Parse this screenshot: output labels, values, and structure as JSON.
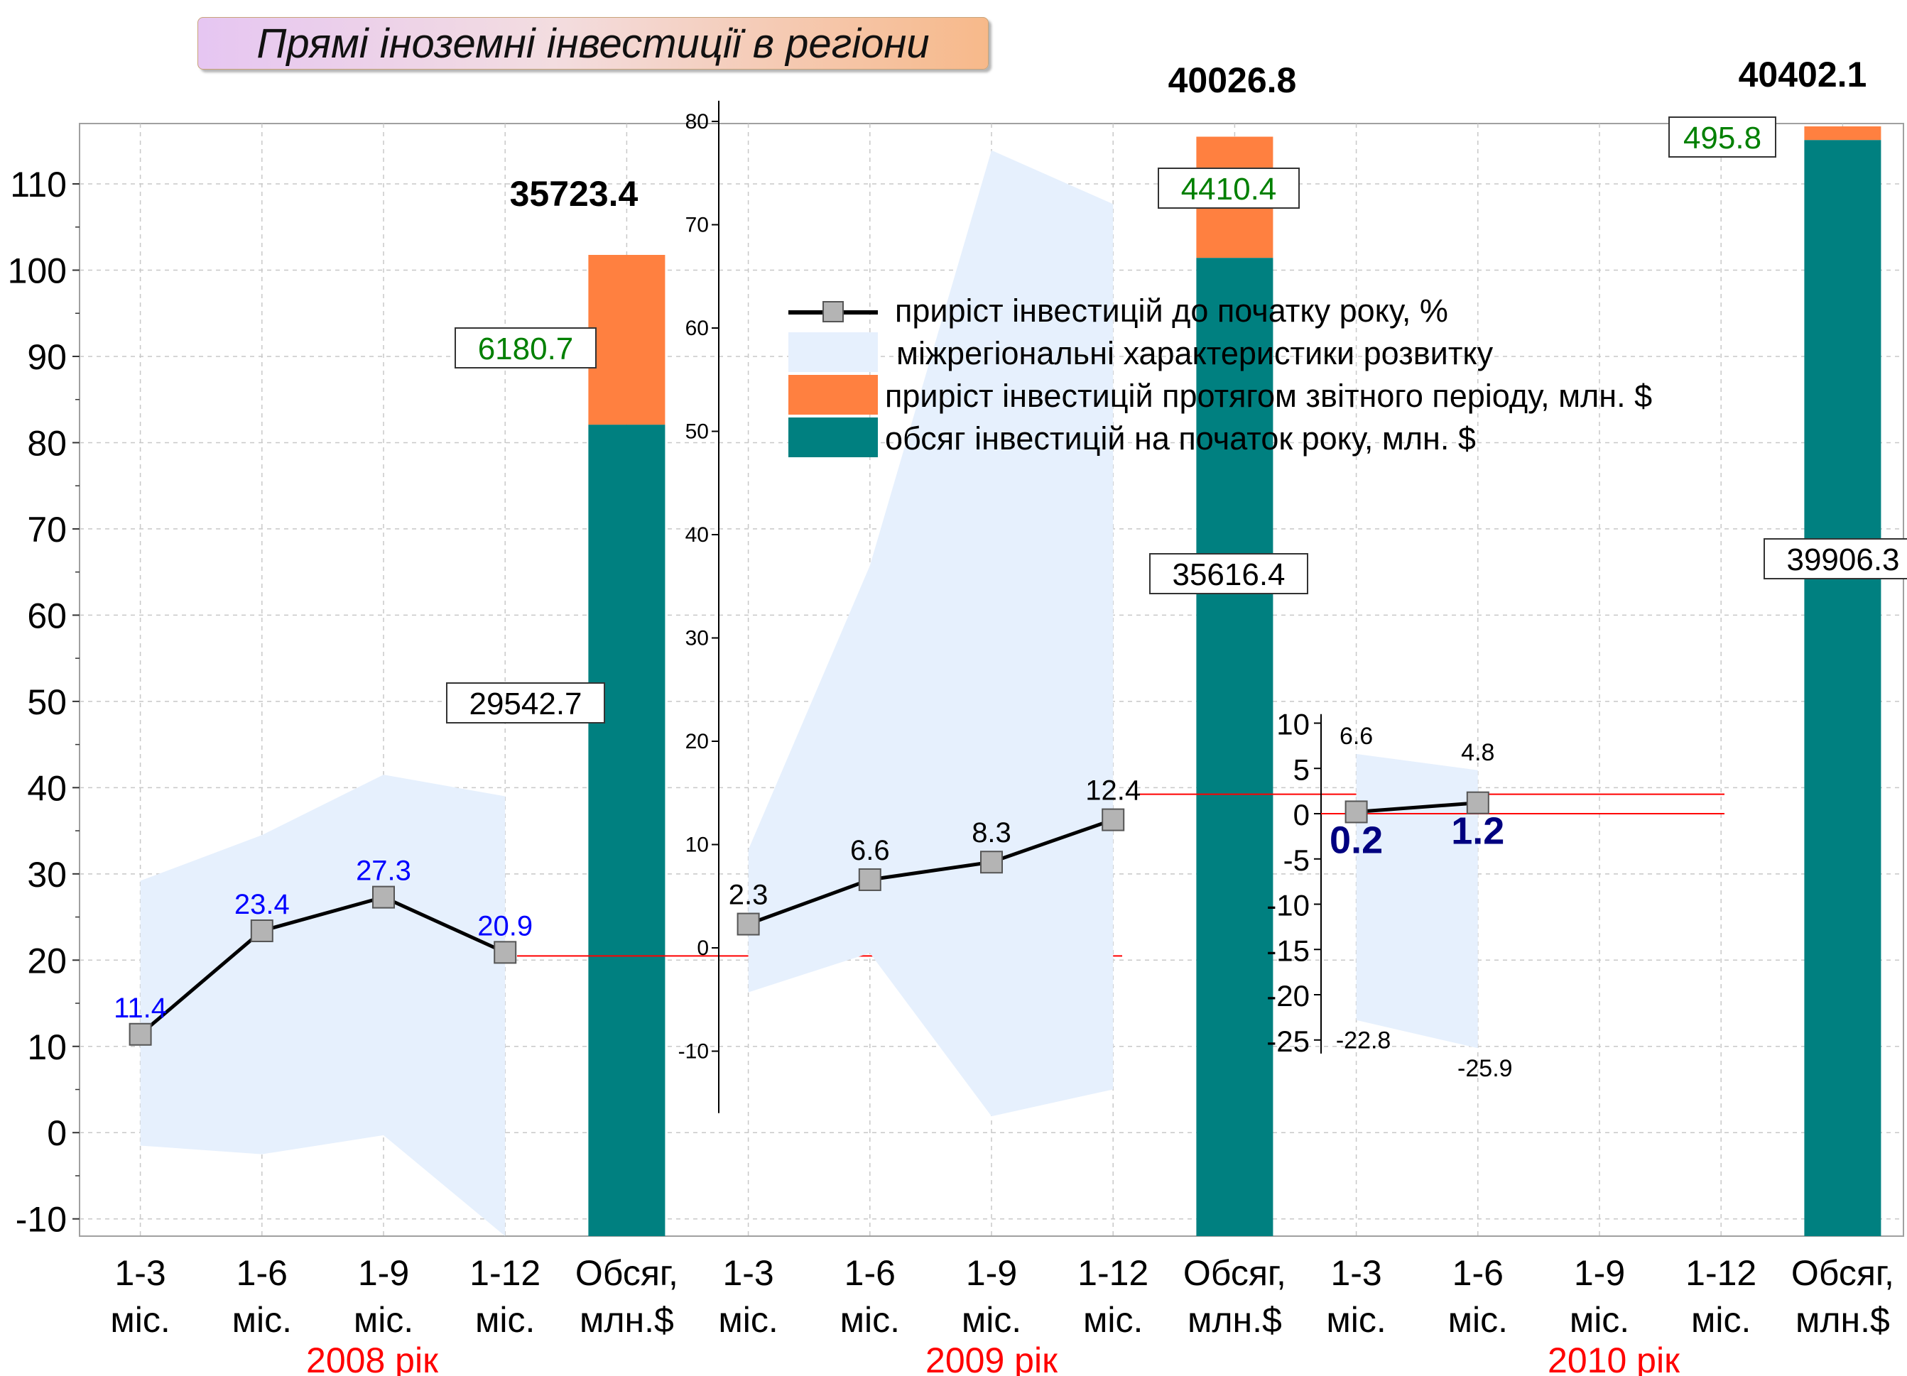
{
  "title": "Прямі іноземні інвестиції в регіони",
  "legend": {
    "line": "приріст інвестицій до початку року, %",
    "band": "міжрегіональні характеристики розвитку",
    "increment": "приріст інвестицій протягом звітного періоду, млн. $",
    "base": "обсяг інвестицій на початок року, млн. $"
  },
  "x_categories": [
    "1-3 міс.",
    "1-6 міс.",
    "1-9 міс.",
    "1-12 міс.",
    "Обсяг, млн.$",
    "1-3 міс.",
    "1-6 міс.",
    "1-9 міс.",
    "1-12 міс.",
    "Обсяг, млн.$",
    "1-3 міс.",
    "1-6 міс.",
    "1-9 міс.",
    "1-12 міс.",
    "Обсяг, млн.$"
  ],
  "year_labels": [
    "2008 рік",
    "2009 рік",
    "2010 рік"
  ],
  "colors": {
    "line": "#000000",
    "marker": "#b4b4b4",
    "band": "#e6f0fd",
    "increment": "#ff8040",
    "base": "#008080",
    "zero_line": "#ff0000",
    "year_label": "#ff0000",
    "label_2008": "#0000ff",
    "label_green": "#008000",
    "label_2010": "#000080"
  },
  "chart_data": [
    {
      "type": "line",
      "name": "2008",
      "axis": {
        "ylim": [
          -12,
          117
        ],
        "ticks": [
          110,
          100,
          90,
          80,
          70,
          60,
          50,
          40,
          30,
          20,
          10,
          0,
          -10
        ]
      },
      "x": [
        "1-3 міс.",
        "1-6 міс.",
        "1-9 міс.",
        "1-12 міс."
      ],
      "values": [
        11.4,
        23.4,
        27.3,
        20.9
      ],
      "labels": [
        "11.4",
        "23.4",
        "27.3",
        "20.9"
      ],
      "band_upper": [
        29.2,
        34.5,
        41.5,
        39.0
      ],
      "band_lower": [
        -1.5,
        -2.5,
        -0.3,
        -12.0
      ]
    },
    {
      "type": "bar",
      "name": "2008 Обсяг",
      "base_value": 29542.7,
      "increment": 6180.7,
      "total": 35723.4,
      "base_label": "29542.7",
      "increment_label": "6180.7",
      "total_label": "35723.4"
    },
    {
      "type": "line",
      "name": "2009",
      "axis": {
        "ticks": [
          80,
          70,
          60,
          50,
          40,
          30,
          20,
          10,
          0,
          -10
        ]
      },
      "x": [
        "1-3 міс.",
        "1-6 міс.",
        "1-9 міс.",
        "1-12 міс."
      ],
      "values": [
        2.3,
        6.6,
        8.3,
        12.4
      ],
      "labels": [
        "2.3",
        "6.6",
        "8.3",
        "12.4"
      ],
      "band_upper": [
        9.5,
        37.0,
        77.2,
        72.0
      ],
      "band_lower": [
        -4.3,
        -0.5,
        -16.3,
        -13.7
      ]
    },
    {
      "type": "bar",
      "name": "2009 Обсяг",
      "base_value": 35616.4,
      "increment": 4410.4,
      "total": 40026.8,
      "base_label": "35616.4",
      "increment_label": "4410.4",
      "total_label": "40026.8"
    },
    {
      "type": "line",
      "name": "2010",
      "axis": {
        "ticks": [
          10,
          5,
          0,
          -5,
          -10,
          -15,
          -20,
          -25
        ]
      },
      "x": [
        "1-3 міс.",
        "1-6 міс."
      ],
      "values": [
        0.2,
        1.2
      ],
      "labels": [
        "0.2",
        "1.2"
      ],
      "band_upper": [
        6.6,
        4.8
      ],
      "band_lower": [
        -22.8,
        -25.9
      ],
      "band_upper_labels": [
        "6.6",
        "4.8"
      ],
      "band_lower_labels": [
        "-22.8",
        "-25.9"
      ]
    },
    {
      "type": "bar",
      "name": "2010 Обсяг",
      "base_value": 39906.3,
      "increment": 495.8,
      "total": 40402.1,
      "base_label": "39906.3",
      "increment_label": "495.8",
      "total_label": "40402.1"
    }
  ]
}
